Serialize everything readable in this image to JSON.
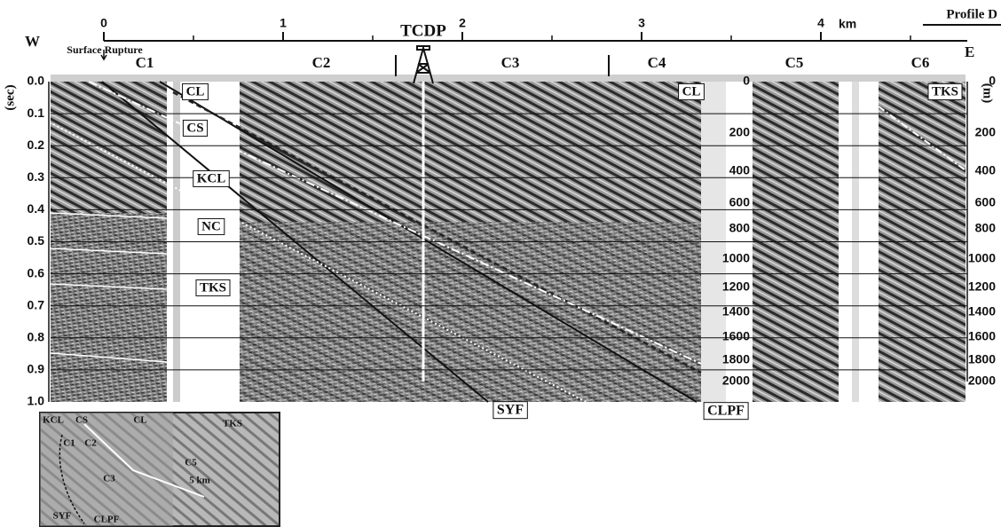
{
  "header": {
    "west": "W",
    "east": "E",
    "km_unit": "km",
    "profile": "Profile D",
    "km_ticks": [
      0,
      1,
      2,
      3,
      4
    ]
  },
  "left_axis": {
    "label": "(sec)",
    "ticks": [
      "0.0",
      "0.1",
      "0.2",
      "0.3",
      "0.4",
      "0.5",
      "0.6",
      "0.7",
      "0.8",
      "0.9",
      "1.0"
    ]
  },
  "right_axis": {
    "label": "(m)",
    "ticks": [
      0,
      200,
      400,
      600,
      800,
      1000,
      1200,
      1400,
      1600,
      1800,
      2000
    ]
  },
  "mid_axis": {
    "ticks": [
      0,
      200,
      400,
      600,
      800,
      1000,
      1200,
      1400,
      1600,
      1800,
      2000
    ]
  },
  "annotations": {
    "surface_rupture": "Surface Rupture",
    "tcdp": "TCDP",
    "segments": [
      "C1",
      "C2",
      "C3",
      "C4",
      "C5",
      "C6"
    ]
  },
  "units": [
    "CL",
    "CS",
    "KCL",
    "NC",
    "TKS",
    "CL",
    "TKS"
  ],
  "faults": [
    "SYF",
    "CLPF"
  ],
  "inset": {
    "labels": [
      "KCL",
      "CS",
      "CL",
      "TKS",
      "C1",
      "C2",
      "C3",
      "C5",
      "5 km",
      "SYF",
      "CLPF"
    ]
  }
}
